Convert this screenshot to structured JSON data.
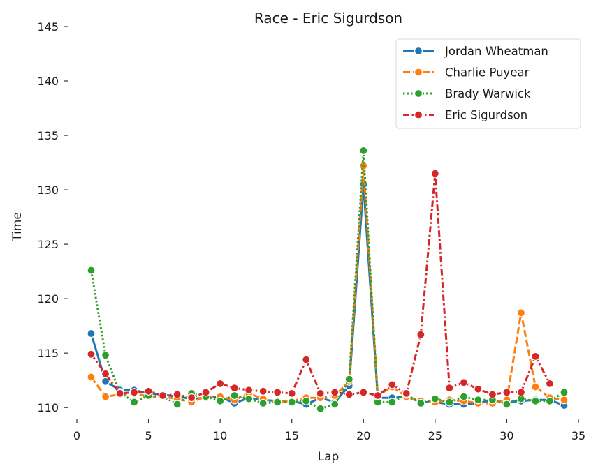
{
  "chart_data": {
    "type": "line",
    "title": "Race - Eric Sigurdson",
    "xlabel": "Lap",
    "ylabel": "Time",
    "xlim": [
      0,
      35
    ],
    "ylim": [
      109.5,
      145
    ],
    "xticks": [
      0,
      5,
      10,
      15,
      20,
      25,
      30,
      35
    ],
    "yticks": [
      110,
      115,
      120,
      125,
      130,
      135,
      140,
      145
    ],
    "grid": false,
    "legend_position": "top-right",
    "series": [
      {
        "name": "Jordan Wheatman",
        "color": "#1f77b4",
        "linestyle": "solid",
        "x": [
          1,
          2,
          3,
          4,
          5,
          6,
          7,
          8,
          9,
          10,
          11,
          12,
          13,
          14,
          15,
          16,
          17,
          18,
          19,
          20,
          21,
          22,
          23,
          24,
          25,
          26,
          27,
          28,
          29,
          30,
          31,
          32,
          33,
          34
        ],
        "values": [
          116.8,
          112.4,
          111.6,
          111.6,
          111.3,
          111.2,
          111.0,
          110.8,
          110.9,
          111.0,
          110.4,
          110.9,
          110.7,
          110.6,
          110.6,
          110.3,
          110.9,
          110.5,
          112.0,
          130.5,
          110.9,
          110.9,
          111.0,
          110.5,
          110.5,
          110.3,
          110.3,
          110.4,
          110.7,
          110.5,
          110.6,
          110.7,
          110.7,
          110.2
        ]
      },
      {
        "name": "Charlie Puyear",
        "color": "#ff7f0e",
        "linestyle": "dashed",
        "x": [
          1,
          2,
          3,
          4,
          5,
          6,
          7,
          8,
          9,
          10,
          11,
          12,
          13,
          14,
          15,
          16,
          17,
          18,
          19,
          20,
          21,
          22,
          23,
          24,
          25,
          26,
          27,
          28,
          29,
          30,
          31,
          32,
          33,
          34
        ],
        "values": [
          112.8,
          111.0,
          111.2,
          111.3,
          111.0,
          111.0,
          110.8,
          110.5,
          111.0,
          111.0,
          110.7,
          111.3,
          110.8,
          110.5,
          110.6,
          110.9,
          110.9,
          111.1,
          112.4,
          132.2,
          111.1,
          111.9,
          111.0,
          110.6,
          110.5,
          110.7,
          110.6,
          110.4,
          110.4,
          110.7,
          118.7,
          111.9,
          110.9,
          110.7
        ]
      },
      {
        "name": "Brady Warwick",
        "color": "#2ca02c",
        "linestyle": "dotted",
        "x": [
          1,
          2,
          3,
          4,
          5,
          6,
          7,
          8,
          9,
          10,
          11,
          12,
          13,
          14,
          15,
          16,
          17,
          18,
          19,
          20,
          21,
          22,
          23,
          24,
          25,
          26,
          27,
          28,
          29,
          30,
          31,
          32,
          33,
          34
        ],
        "values": [
          122.6,
          114.8,
          111.4,
          110.5,
          111.1,
          111.0,
          110.3,
          111.3,
          111.0,
          110.6,
          111.1,
          110.8,
          110.4,
          110.5,
          110.5,
          110.6,
          109.9,
          110.3,
          112.6,
          133.6,
          110.5,
          110.5,
          111.2,
          110.4,
          110.8,
          110.5,
          111.0,
          110.7,
          110.7,
          110.3,
          110.8,
          110.6,
          110.6,
          111.4
        ]
      },
      {
        "name": "Eric Sigurdson",
        "color": "#d62728",
        "linestyle": "dashdot",
        "x": [
          1,
          2,
          3,
          4,
          5,
          6,
          7,
          8,
          9,
          10,
          11,
          12,
          13,
          14,
          15,
          16,
          17,
          18,
          19,
          20,
          21,
          22,
          23,
          24,
          25,
          26,
          27,
          28,
          29,
          30,
          31,
          32,
          33,
          34
        ],
        "values": [
          114.9,
          113.1,
          111.3,
          111.4,
          111.5,
          111.1,
          111.2,
          110.9,
          111.4,
          112.2,
          111.8,
          111.6,
          111.5,
          111.4,
          111.3,
          114.4,
          111.3,
          111.4,
          111.2,
          111.4,
          111.1,
          112.1,
          111.3,
          116.7,
          131.5,
          111.8,
          112.3,
          111.7,
          111.2,
          111.4,
          111.4,
          114.7,
          112.2,
          null
        ]
      }
    ]
  }
}
